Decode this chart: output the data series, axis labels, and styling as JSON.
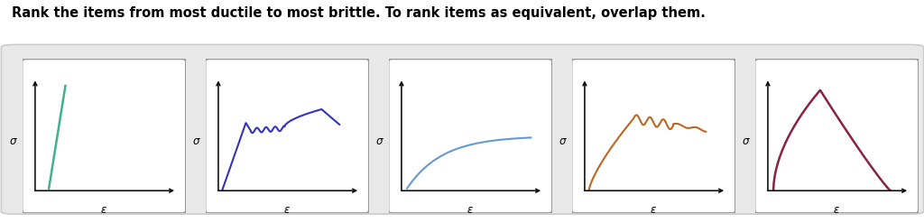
{
  "title": "Rank the items from most ductile to most brittle. To rank items as equivalent, overlap them.",
  "title_fontsize": 10.5,
  "title_fontweight": "bold",
  "background_color": "#ffffff",
  "container_facecolor": "#e8e8e8",
  "container_edgecolor": "#cccccc",
  "panel_facecolor": "#ffffff",
  "panel_edgecolor": "#888888",
  "num_plots": 5,
  "sigma_label": "σ",
  "epsilon_label": "ε",
  "plot_colors": [
    "#40b090",
    "#3333bb",
    "#6699cc",
    "#bb6622",
    "#882244"
  ],
  "plot_linewidths": [
    1.8,
    1.5,
    1.5,
    1.5,
    1.8
  ],
  "fig_width": 10.24,
  "fig_height": 2.47,
  "fig_dpi": 100
}
